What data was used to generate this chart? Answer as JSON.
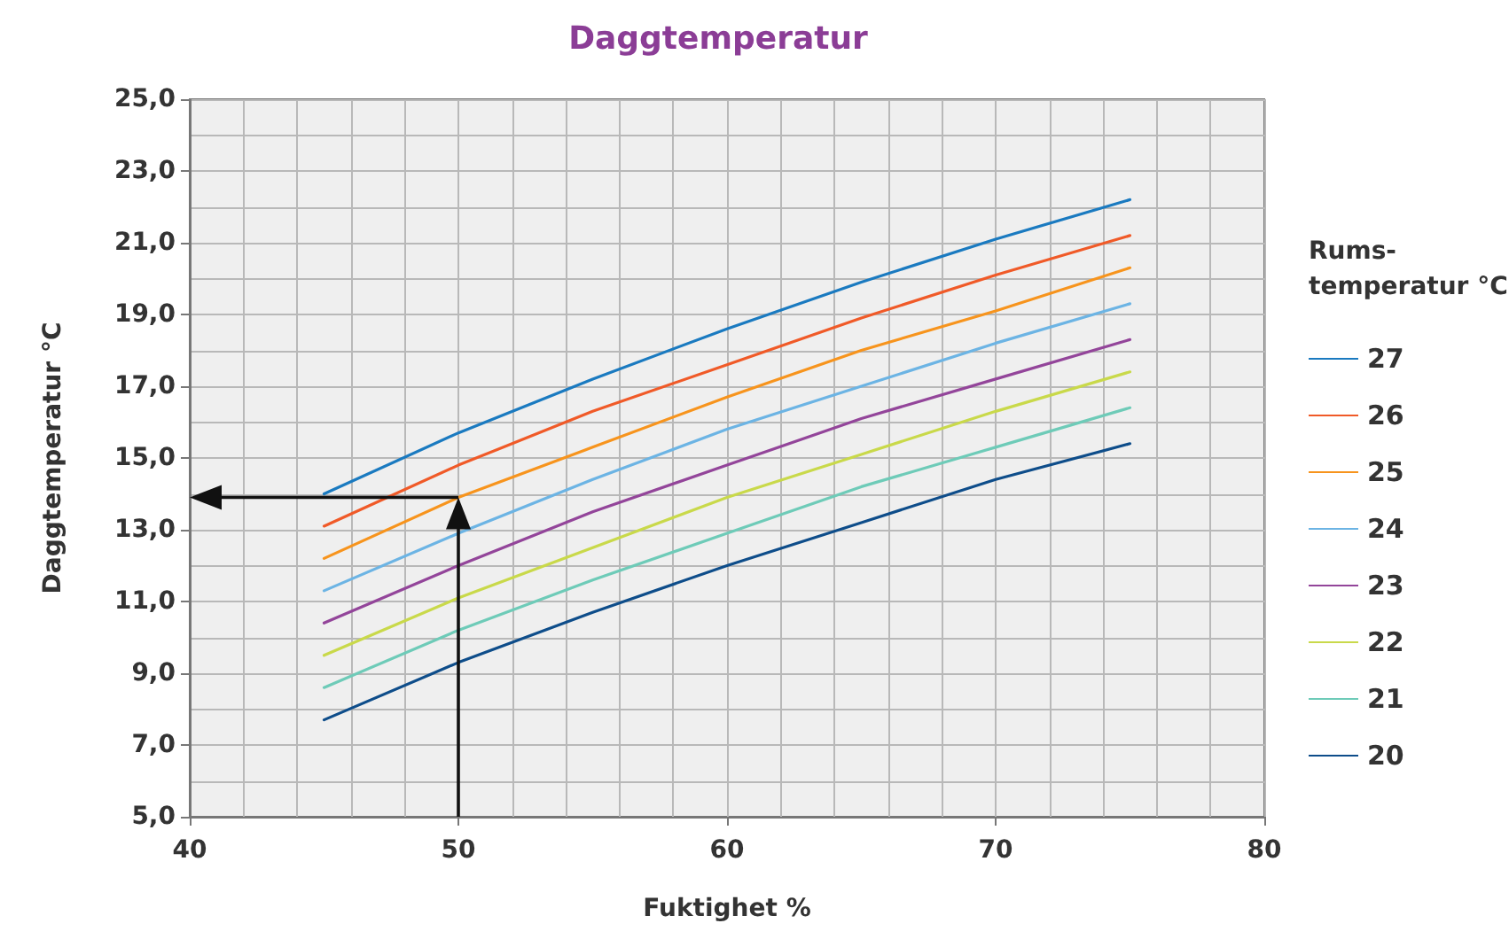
{
  "chart_data": {
    "type": "line",
    "title": "Daggtemperatur",
    "xlabel": "Fuktighet %",
    "ylabel": "Daggtemperatur °C",
    "legend_title": "Rums-\ntemperatur °C",
    "legend": "right",
    "grid": true,
    "marker": "none",
    "line_style": "solid",
    "xlim": [
      40,
      80
    ],
    "xticks": [
      40,
      50,
      60,
      70,
      80
    ],
    "ylim": [
      5,
      25
    ],
    "yticks": [
      {
        "value": 5,
        "label": "5,0"
      },
      {
        "value": 7,
        "label": "7,0"
      },
      {
        "value": 9,
        "label": "9,0"
      },
      {
        "value": 11,
        "label": "11,0"
      },
      {
        "value": 13,
        "label": "13,0"
      },
      {
        "value": 15,
        "label": "15,0"
      },
      {
        "value": 17,
        "label": "17,0"
      },
      {
        "value": 19,
        "label": "19,0"
      },
      {
        "value": 21,
        "label": "21,0"
      },
      {
        "value": 23,
        "label": "23,0"
      },
      {
        "value": 25,
        "label": "25,0"
      }
    ],
    "x": [
      45,
      50,
      55,
      60,
      65,
      70,
      75
    ],
    "series": [
      {
        "name": "27",
        "color": "#1a7ac0",
        "values": [
          14.0,
          15.7,
          17.2,
          18.6,
          19.9,
          21.1,
          22.2
        ]
      },
      {
        "name": "26",
        "color": "#f05a28",
        "values": [
          13.1,
          14.8,
          16.3,
          17.6,
          18.9,
          20.1,
          21.2
        ]
      },
      {
        "name": "25",
        "color": "#f7941d",
        "values": [
          12.2,
          13.9,
          15.3,
          16.7,
          18.0,
          19.1,
          20.3
        ]
      },
      {
        "name": "24",
        "color": "#6cb4e4",
        "values": [
          11.3,
          12.9,
          14.4,
          15.8,
          17.0,
          18.2,
          19.3
        ]
      },
      {
        "name": "23",
        "color": "#93459a",
        "values": [
          10.4,
          12.0,
          13.5,
          14.8,
          16.1,
          17.2,
          18.3
        ]
      },
      {
        "name": "22",
        "color": "#c9d94a",
        "values": [
          9.5,
          11.1,
          12.5,
          13.9,
          15.1,
          16.3,
          17.4
        ]
      },
      {
        "name": "21",
        "color": "#6ecbb8",
        "values": [
          8.6,
          10.2,
          11.6,
          12.9,
          14.2,
          15.3,
          16.4
        ]
      },
      {
        "name": "20",
        "color": "#0e4d8a",
        "values": [
          7.7,
          9.3,
          10.7,
          12.0,
          13.2,
          14.4,
          15.4
        ]
      }
    ]
  }
}
